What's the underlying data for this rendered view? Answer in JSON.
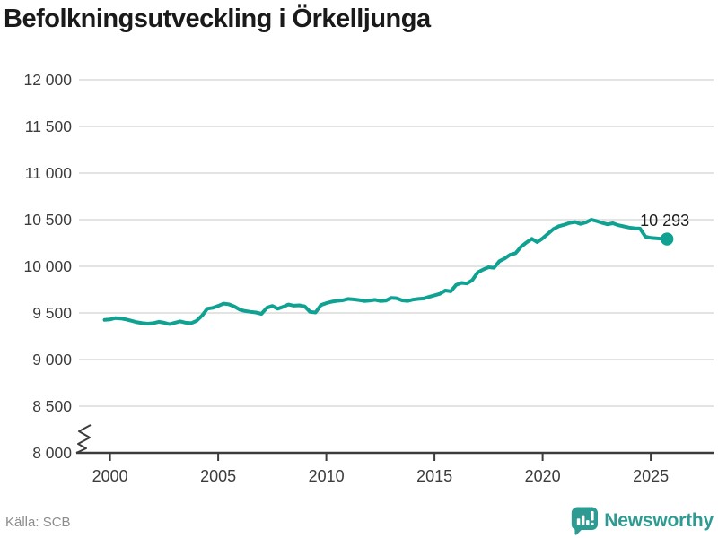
{
  "title": "Befolkningsutveckling i Örkelljunga",
  "footer": {
    "source": "Källa: SCB",
    "brand_name": "Newsworthy"
  },
  "colors": {
    "line": "#0FA191",
    "brand": "#2E9B93",
    "axis": "#3C3C3C",
    "grid": "#DADADA",
    "title_text": "#1A1A1A",
    "tick_text": "#3C3C3C",
    "source_text": "#8C8C8C",
    "background": "#FFFFFF"
  },
  "chart_data": {
    "type": "line",
    "title": "Befolkningsutveckling i Örkelljunga",
    "grid": "horizontal",
    "legend": "none",
    "axis_break_at_y_min": true,
    "x_domain": [
      1998.44,
      2027.9
    ],
    "y_domain": [
      8000,
      12000
    ],
    "x_tick_values": [
      2000,
      2005,
      2010,
      2015,
      2020,
      2025
    ],
    "x_ticks": [
      "2000",
      "2005",
      "2010",
      "2015",
      "2020",
      "2025"
    ],
    "y_tick_values": [
      8000,
      8500,
      9000,
      9500,
      10000,
      10500,
      11000,
      11500,
      12000
    ],
    "y_ticks": [
      "8 000",
      "8 500",
      "9 000",
      "9 500",
      "10 000",
      "10 500",
      "11 000",
      "11 500",
      "12 000"
    ],
    "end_label": "10 293",
    "latest_value": 10293,
    "series": [
      {
        "x_start": 1999.75,
        "x_step": 0.25,
        "values": [
          9425,
          9430,
          9445,
          9440,
          9430,
          9415,
          9400,
          9390,
          9385,
          9390,
          9405,
          9395,
          9380,
          9395,
          9410,
          9395,
          9390,
          9415,
          9470,
          9545,
          9555,
          9575,
          9600,
          9592,
          9568,
          9535,
          9520,
          9512,
          9505,
          9490,
          9555,
          9575,
          9545,
          9565,
          9590,
          9578,
          9582,
          9570,
          9512,
          9505,
          9585,
          9605,
          9620,
          9630,
          9635,
          9650,
          9645,
          9638,
          9628,
          9632,
          9640,
          9628,
          9632,
          9662,
          9658,
          9635,
          9628,
          9642,
          9650,
          9655,
          9672,
          9688,
          9705,
          9740,
          9732,
          9800,
          9822,
          9815,
          9852,
          9935,
          9965,
          9990,
          9985,
          10055,
          10085,
          10125,
          10140,
          10210,
          10255,
          10295,
          10260,
          10300,
          10350,
          10400,
          10430,
          10445,
          10465,
          10475,
          10455,
          10470,
          10500,
          10485,
          10465,
          10450,
          10462,
          10440,
          10428,
          10415,
          10408,
          10405,
          10318,
          10305,
          10300,
          10296,
          10293
        ]
      }
    ]
  }
}
